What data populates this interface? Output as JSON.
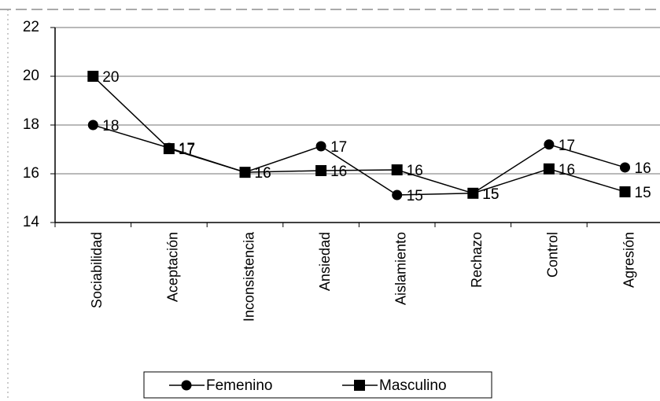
{
  "chart_data": {
    "type": "line",
    "categories": [
      "Sociabilidad",
      "Aceptación",
      "Inconsistencia",
      "Ansiedad",
      "Aislamiento",
      "Rechazo",
      "Control",
      "Agresión"
    ],
    "series": [
      {
        "name": "Femenino",
        "color": "#000000",
        "marker": "circle",
        "values": [
          18.0,
          17.06,
          16.06,
          17.13,
          15.13,
          15.2,
          17.2,
          16.26
        ],
        "value_labels": [
          "18",
          "17",
          "16",
          "17",
          "15",
          "15",
          "17",
          "16"
        ]
      },
      {
        "name": "Masculino",
        "color": "#000000",
        "marker": "square",
        "values": [
          20.0,
          17.03,
          16.06,
          16.13,
          16.16,
          15.2,
          16.2,
          15.26
        ],
        "value_labels": [
          "20",
          "17",
          "16",
          "16",
          "16",
          "15",
          "16",
          "15"
        ]
      }
    ],
    "ylim": [
      14,
      22
    ],
    "yticks": [
      14,
      16,
      18,
      20,
      22
    ],
    "grid": true,
    "legend": "bottom"
  }
}
